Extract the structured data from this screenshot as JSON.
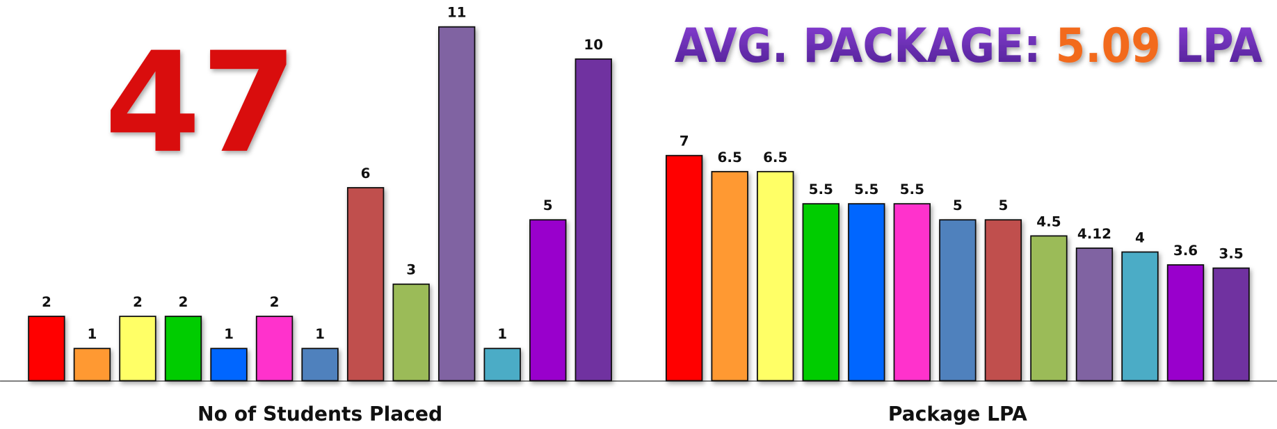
{
  "chart_data": [
    {
      "type": "bar",
      "xlabel": "No of Students Placed",
      "values": [
        2,
        1,
        2,
        2,
        1,
        2,
        1,
        6,
        3,
        11,
        1,
        5,
        10
      ],
      "colors": [
        "#ff0000",
        "#ff9933",
        "#ffff66",
        "#00cc00",
        "#0066ff",
        "#ff33cc",
        "#4f81bd",
        "#c0504d",
        "#9bbb59",
        "#8064a2",
        "#4bacc6",
        "#9900cc",
        "#7030a0"
      ],
      "ylim": [
        0,
        11
      ]
    },
    {
      "type": "bar",
      "xlabel": "Package LPA",
      "values": [
        7,
        6.5,
        6.5,
        5.5,
        5.5,
        5.5,
        5,
        5,
        4.5,
        4.12,
        4,
        3.6,
        3.5
      ],
      "colors": [
        "#ff0000",
        "#ff9933",
        "#ffff66",
        "#00cc00",
        "#0066ff",
        "#ff33cc",
        "#4f81bd",
        "#c0504d",
        "#9bbb59",
        "#8064a2",
        "#4bacc6",
        "#9900cc",
        "#7030a0"
      ],
      "ylim": [
        0,
        11
      ]
    }
  ],
  "stats": {
    "count": "47",
    "avg_label": "AVG. PACKAGE:",
    "avg_value": "5.09",
    "avg_unit": "LPA"
  }
}
